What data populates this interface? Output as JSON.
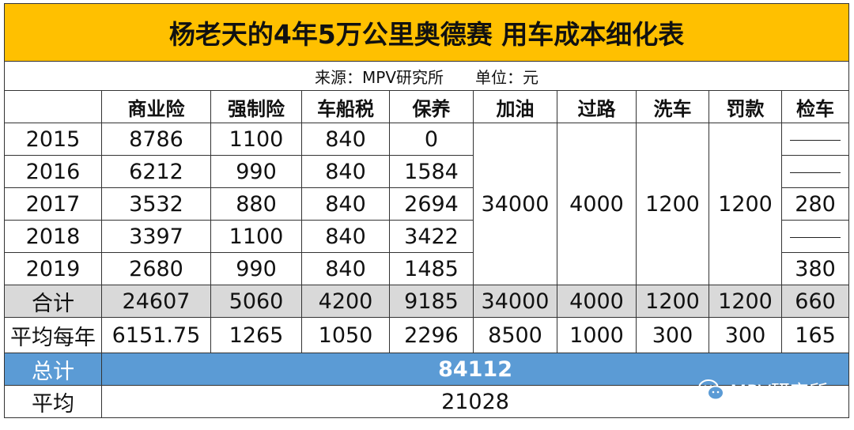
{
  "title": "杨老天的4年5万公里奥德赛 用车成本细化表",
  "source": "来源：MPV研究所　　单位：元",
  "headers": [
    "",
    "商业险",
    "强制险",
    "车船税",
    "保养",
    "加油",
    "过路",
    "洗车",
    "罚款",
    "检车"
  ],
  "rows": [
    {
      "year": "2015",
      "commercial": "8786",
      "compulsory": "1100",
      "tax": "840",
      "maintenance": "0",
      "inspection": ""
    },
    {
      "year": "2016",
      "commercial": "6212",
      "compulsory": "990",
      "tax": "840",
      "maintenance": "1584",
      "inspection": ""
    },
    {
      "year": "2017",
      "commercial": "3532",
      "compulsory": "880",
      "tax": "840",
      "maintenance": "2694",
      "inspection": "280"
    },
    {
      "year": "2018",
      "commercial": "3397",
      "compulsory": "1100",
      "tax": "840",
      "maintenance": "3422",
      "inspection": ""
    },
    {
      "year": "2019",
      "commercial": "2680",
      "compulsory": "990",
      "tax": "840",
      "maintenance": "1485",
      "inspection": "380"
    }
  ],
  "merged": {
    "fuel": "34000",
    "tolls": "4000",
    "wash": "1200",
    "fines": "1200"
  },
  "sum_row": [
    "合计",
    "24607",
    "5060",
    "4200",
    "9185",
    "34000",
    "4000",
    "1200",
    "1200",
    "660"
  ],
  "avg_row": [
    "平均每年",
    "6151.75",
    "1265",
    "1050",
    "2296",
    "8500",
    "1000",
    "300",
    "300",
    "165"
  ],
  "total": {
    "label": "总计",
    "value": "84112"
  },
  "grand_avg": {
    "label": "平均",
    "value": "21028"
  },
  "watermark": "MPV研究所",
  "colors": {
    "title_bg": "#ffc000",
    "sum_bg": "#d9d9d9",
    "total_bg": "#5b9bd5"
  }
}
